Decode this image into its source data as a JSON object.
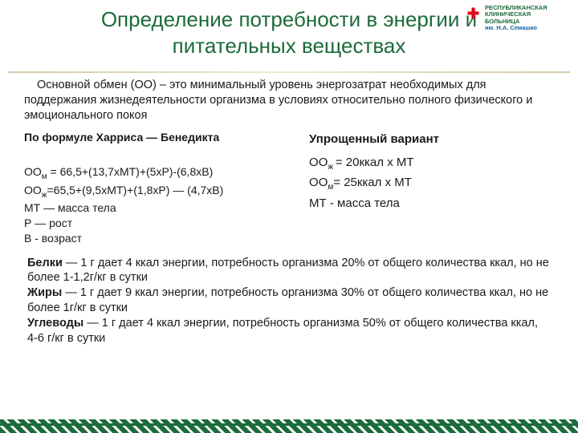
{
  "slide": {
    "title": "Определение потребности в энергии и питательных веществах",
    "intro": "Основной обмен (ОО) – это минимальный уровень энергозатрат необходимых для поддержания жизнедеятельности организма в условиях относительно полного физического и эмоционального покоя",
    "left": {
      "header": "По формуле Харриса — Бенедикта",
      "oo_m_prefix": "ОО",
      "oo_m_sub": "м",
      "oo_m_rest": " = 66,5+(13,7xМТ)+(5xР)-(6,8xВ)",
      "oo_zh_prefix": "ОО",
      "oo_zh_sub": "ж",
      "oo_zh_rest": "=65,5+(9,5xМТ)+(1,8xР) — (4,7xВ)",
      "mt": " МТ — масса тела",
      "r": " Р — рост",
      "v": " В - возраст"
    },
    "right": {
      "header": "Упрощенный вариант",
      "oo_zh_prefix": "ОО",
      "oo_zh_sub": "ж ",
      "oo_zh_rest": "= 20ккал x МТ",
      "oo_m_prefix": "ОО",
      "oo_m_sub": "м",
      "oo_m_rest": "= 25ккал x МТ",
      "mt": "МТ -  масса тела"
    },
    "macros": {
      "b_lbl": "Белки",
      "b_txt": " — 1 г дает 4 ккал энергии, потребность организма 20% от общего количества ккал,  но не более 1-1,2г/кг в сутки",
      "zh_lbl": " Жиры",
      "zh_txt": " — 1 г дает 9 ккал энергии, потребность организма 30% от общего количества ккал, но не более 1г/кг в сутки",
      "u_lbl": " Углеводы",
      "u_txt": " — 1 г дает 4 ккал энергии, потребность организма 50% от общего количества ккал, 4-6 г/кг в сутки"
    }
  },
  "logo": {
    "l1": "РЕСПУБЛИКАНСКАЯ",
    "l2": "КЛИНИЧЕСКАЯ",
    "l3": "БОЛЬНИЦА",
    "l4": "им. Н.А. Семашко"
  }
}
